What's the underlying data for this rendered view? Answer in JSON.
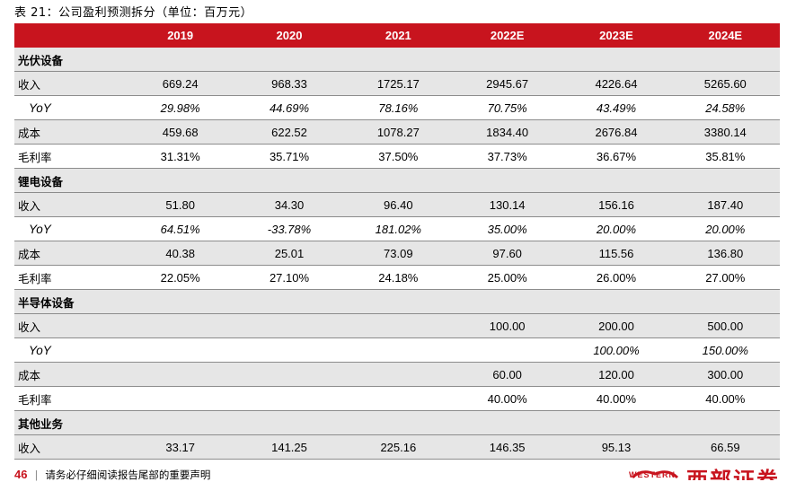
{
  "caption": "表 21：公司盈利预测拆分（单位：百万元）",
  "columns": [
    "",
    "2019",
    "2020",
    "2021",
    "2022E",
    "2023E",
    "2024E"
  ],
  "rows": [
    {
      "type": "section",
      "label": "光伏设备",
      "cells": [
        "",
        "",
        "",
        "",
        "",
        ""
      ]
    },
    {
      "type": "data",
      "label": "收入",
      "cells": [
        "669.24",
        "968.33",
        "1725.17",
        "2945.67",
        "4226.64",
        "5265.60"
      ]
    },
    {
      "type": "yoy",
      "label": "YoY",
      "cells": [
        "29.98%",
        "44.69%",
        "78.16%",
        "70.75%",
        "43.49%",
        "24.58%"
      ]
    },
    {
      "type": "data",
      "label": "成本",
      "cells": [
        "459.68",
        "622.52",
        "1078.27",
        "1834.40",
        "2676.84",
        "3380.14"
      ]
    },
    {
      "type": "data",
      "label": "毛利率",
      "cells": [
        "31.31%",
        "35.71%",
        "37.50%",
        "37.73%",
        "36.67%",
        "35.81%"
      ]
    },
    {
      "type": "section",
      "label": "锂电设备",
      "cells": [
        "",
        "",
        "",
        "",
        "",
        ""
      ]
    },
    {
      "type": "data",
      "label": "收入",
      "cells": [
        "51.80",
        "34.30",
        "96.40",
        "130.14",
        "156.16",
        "187.40"
      ]
    },
    {
      "type": "yoy",
      "label": "YoY",
      "cells": [
        "64.51%",
        "-33.78%",
        "181.02%",
        "35.00%",
        "20.00%",
        "20.00%"
      ]
    },
    {
      "type": "data",
      "label": "成本",
      "cells": [
        "40.38",
        "25.01",
        "73.09",
        "97.60",
        "115.56",
        "136.80"
      ]
    },
    {
      "type": "data",
      "label": "毛利率",
      "cells": [
        "22.05%",
        "27.10%",
        "24.18%",
        "25.00%",
        "26.00%",
        "27.00%"
      ]
    },
    {
      "type": "section",
      "label": "半导体设备",
      "cells": [
        "",
        "",
        "",
        "",
        "",
        ""
      ]
    },
    {
      "type": "data",
      "label": "收入",
      "cells": [
        "",
        "",
        "",
        "100.00",
        "200.00",
        "500.00"
      ]
    },
    {
      "type": "yoy",
      "label": "YoY",
      "cells": [
        "",
        "",
        "",
        "",
        "100.00%",
        "150.00%"
      ]
    },
    {
      "type": "data",
      "label": "成本",
      "cells": [
        "",
        "",
        "",
        "60.00",
        "120.00",
        "300.00"
      ]
    },
    {
      "type": "data",
      "label": "毛利率",
      "cells": [
        "",
        "",
        "",
        "40.00%",
        "40.00%",
        "40.00%"
      ]
    },
    {
      "type": "section",
      "label": "其他业务",
      "cells": [
        "",
        "",
        "",
        "",
        "",
        ""
      ]
    },
    {
      "type": "data",
      "label": "收入",
      "cells": [
        "33.17",
        "141.25",
        "225.16",
        "146.35",
        "95.13",
        "66.59"
      ]
    }
  ],
  "footer": {
    "page": "46",
    "separator": "|",
    "notice": "请务必仔细阅读报告尾部的重要声明"
  },
  "logo": {
    "english": "WESTERN",
    "chinese": "西部证券"
  },
  "colors": {
    "header_bg": "#c8141e",
    "shade_bg": "#e6e6e6",
    "brand": "#c8141e"
  }
}
